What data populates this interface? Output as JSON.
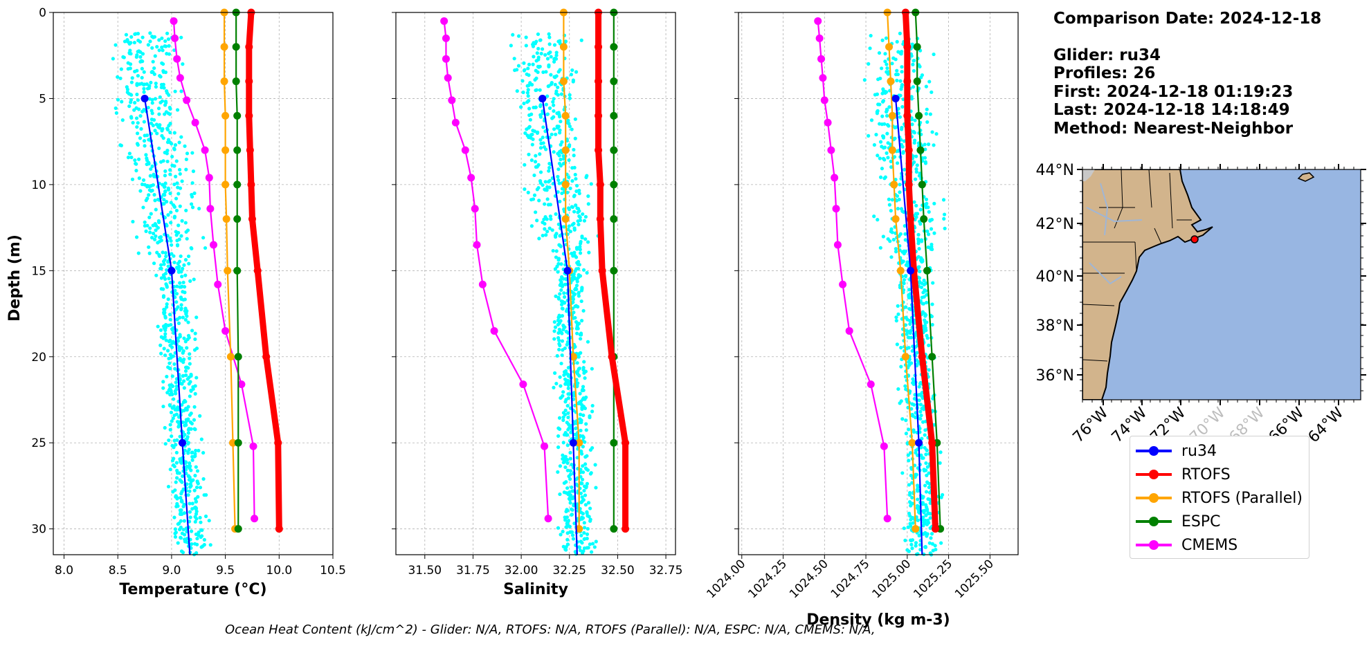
{
  "chart_data": [
    {
      "type": "line",
      "xlabel": "Temperature (°C)",
      "ylabel": "Depth (m)",
      "xlim": [
        7.9,
        10.5
      ],
      "ylim": [
        31.5,
        0
      ],
      "xticks": [
        "8.0",
        "8.5",
        "9.0",
        "9.5",
        "10.0",
        "10.5"
      ],
      "yticks": [
        "0",
        "5",
        "10",
        "15",
        "20",
        "25",
        "30"
      ],
      "series": [
        {
          "name": "ru34",
          "color": "#0000ff",
          "depth": [
            5,
            15,
            25,
            31.5
          ],
          "values": [
            8.75,
            9.0,
            9.1,
            9.17
          ]
        },
        {
          "name": "RTOFS",
          "color": "#ff0000",
          "depth": [
            0,
            2,
            4,
            6,
            8,
            10,
            12,
            15,
            20,
            25,
            30
          ],
          "values": [
            9.74,
            9.72,
            9.72,
            9.72,
            9.73,
            9.74,
            9.75,
            9.8,
            9.88,
            9.99,
            10.0
          ]
        },
        {
          "name": "RTOFS (Parallel)",
          "color": "#ffa500",
          "depth": [
            0,
            2,
            4,
            6,
            8,
            10,
            12,
            15,
            20,
            25,
            30
          ],
          "values": [
            9.49,
            9.49,
            9.49,
            9.5,
            9.5,
            9.5,
            9.51,
            9.52,
            9.55,
            9.57,
            9.59
          ]
        },
        {
          "name": "ESPC",
          "color": "#008000",
          "depth": [
            0,
            2,
            4,
            6,
            8,
            10,
            12,
            15,
            20,
            25,
            30
          ],
          "values": [
            9.6,
            9.6,
            9.6,
            9.61,
            9.61,
            9.61,
            9.61,
            9.61,
            9.62,
            9.62,
            9.62
          ]
        },
        {
          "name": "CMEMS",
          "color": "#ff00ff",
          "depth": [
            0.5,
            1.5,
            2.7,
            3.8,
            5.1,
            6.4,
            8,
            9.6,
            11.4,
            13.5,
            15.8,
            18.5,
            21.6,
            25.2,
            29.4
          ],
          "values": [
            9.02,
            9.03,
            9.05,
            9.08,
            9.14,
            9.22,
            9.31,
            9.35,
            9.36,
            9.39,
            9.43,
            9.5,
            9.65,
            9.76,
            9.77
          ]
        }
      ]
    },
    {
      "type": "line",
      "xlabel": "Salinity",
      "ylabel": "",
      "xlim": [
        31.35,
        32.8
      ],
      "ylim": [
        31.5,
        0
      ],
      "xticks": [
        "31.50",
        "31.75",
        "32.00",
        "32.25",
        "32.50",
        "32.75"
      ],
      "series": [
        {
          "name": "ru34",
          "color": "#0000ff",
          "depth": [
            5,
            15,
            25,
            31.5
          ],
          "values": [
            32.11,
            32.24,
            32.27,
            32.29
          ]
        },
        {
          "name": "RTOFS",
          "color": "#ff0000",
          "depth": [
            0,
            2,
            4,
            6,
            8,
            10,
            12,
            15,
            20,
            25,
            30
          ],
          "values": [
            32.4,
            32.4,
            32.4,
            32.4,
            32.4,
            32.41,
            32.41,
            32.42,
            32.47,
            32.54,
            32.54
          ]
        },
        {
          "name": "RTOFS (Parallel)",
          "color": "#ffa500",
          "depth": [
            0,
            2,
            4,
            6,
            8,
            10,
            12,
            15,
            20,
            25,
            30
          ],
          "values": [
            32.22,
            32.22,
            32.22,
            32.23,
            32.23,
            32.23,
            32.23,
            32.25,
            32.27,
            32.3,
            32.3
          ]
        },
        {
          "name": "ESPC",
          "color": "#008000",
          "depth": [
            0,
            2,
            4,
            6,
            8,
            10,
            12,
            15,
            20,
            25,
            30
          ],
          "values": [
            32.48,
            32.48,
            32.48,
            32.48,
            32.48,
            32.48,
            32.48,
            32.48,
            32.48,
            32.48,
            32.48
          ]
        },
        {
          "name": "CMEMS",
          "color": "#ff00ff",
          "depth": [
            0.5,
            1.5,
            2.7,
            3.8,
            5.1,
            6.4,
            8,
            9.6,
            11.4,
            13.5,
            15.8,
            18.5,
            21.6,
            25.2,
            29.4
          ],
          "values": [
            31.6,
            31.61,
            31.61,
            31.62,
            31.64,
            31.66,
            31.71,
            31.74,
            31.76,
            31.77,
            31.8,
            31.86,
            32.01,
            32.12,
            32.14
          ]
        }
      ]
    },
    {
      "type": "line",
      "xlabel": "Density (kg m-3)",
      "ylabel": "",
      "xlim": [
        1023.98,
        1025.67
      ],
      "ylim": [
        31.5,
        0
      ],
      "xticks": [
        "1024.00",
        "1024.25",
        "1024.50",
        "1024.75",
        "1025.00",
        "1025.25",
        "1025.50"
      ],
      "series": [
        {
          "name": "ru34",
          "color": "#0000ff",
          "depth": [
            5,
            15,
            25,
            31.5
          ],
          "values": [
            1024.93,
            1025.02,
            1025.07,
            1025.09
          ]
        },
        {
          "name": "RTOFS",
          "color": "#ff0000",
          "depth": [
            0,
            2,
            4,
            6,
            8,
            10,
            12,
            15,
            20,
            25,
            30
          ],
          "values": [
            1024.99,
            1025.0,
            1025.0,
            1025.0,
            1025.01,
            1025.01,
            1025.02,
            1025.04,
            1025.09,
            1025.15,
            1025.17
          ]
        },
        {
          "name": "RTOFS (Parallel)",
          "color": "#ffa500",
          "depth": [
            0,
            2,
            4,
            6,
            8,
            10,
            12,
            15,
            20,
            25,
            30
          ],
          "values": [
            1024.88,
            1024.89,
            1024.9,
            1024.91,
            1024.91,
            1024.92,
            1024.93,
            1024.96,
            1024.99,
            1025.03,
            1025.05
          ]
        },
        {
          "name": "ESPC",
          "color": "#008000",
          "depth": [
            0,
            2,
            4,
            6,
            8,
            10,
            12,
            15,
            20,
            25,
            30
          ],
          "values": [
            1025.05,
            1025.06,
            1025.06,
            1025.07,
            1025.08,
            1025.09,
            1025.1,
            1025.12,
            1025.15,
            1025.18,
            1025.2
          ]
        },
        {
          "name": "CMEMS",
          "color": "#ff00ff",
          "depth": [
            0.5,
            1.5,
            2.7,
            3.8,
            5.1,
            6.4,
            8,
            9.6,
            11.4,
            13.5,
            15.8,
            18.5,
            21.6,
            25.2,
            29.4
          ],
          "values": [
            1024.46,
            1024.47,
            1024.48,
            1024.49,
            1024.5,
            1024.52,
            1024.54,
            1024.56,
            1024.57,
            1024.58,
            1024.61,
            1024.65,
            1024.78,
            1024.86,
            1024.88
          ]
        }
      ]
    }
  ],
  "map": {
    "lon_ticks": [
      "76°W",
      "74°W",
      "72°W",
      "70°W",
      "68°W",
      "66°W",
      "64°W"
    ],
    "lat_ticks": [
      "44°N",
      "42°N",
      "40°N",
      "38°N",
      "36°N"
    ],
    "land_color": "#d2b48c",
    "ocean_color": "#98b6e2"
  },
  "info": {
    "line1": "Comparison Date: 2024-12-18",
    "line2": "Glider: ru34",
    "line3": "Profiles: 26",
    "line4": "First: 2024-12-18 01:19:23",
    "line5": "Last: 2024-12-18 14:18:49",
    "line6": "Method: Nearest-Neighbor"
  },
  "legend": [
    {
      "label": "ru34",
      "color": "#0000ff"
    },
    {
      "label": "RTOFS",
      "color": "#ff0000"
    },
    {
      "label": "RTOFS (Parallel)",
      "color": "#ffa500"
    },
    {
      "label": "ESPC",
      "color": "#008000"
    },
    {
      "label": "CMEMS",
      "color": "#ff00ff"
    }
  ],
  "footer": "Ocean Heat Content (kJ/cm^2) - Glider: N/A,  RTOFS: N/A,  RTOFS (Parallel): N/A,  ESPC: N/A,  CMEMS: N/A,"
}
